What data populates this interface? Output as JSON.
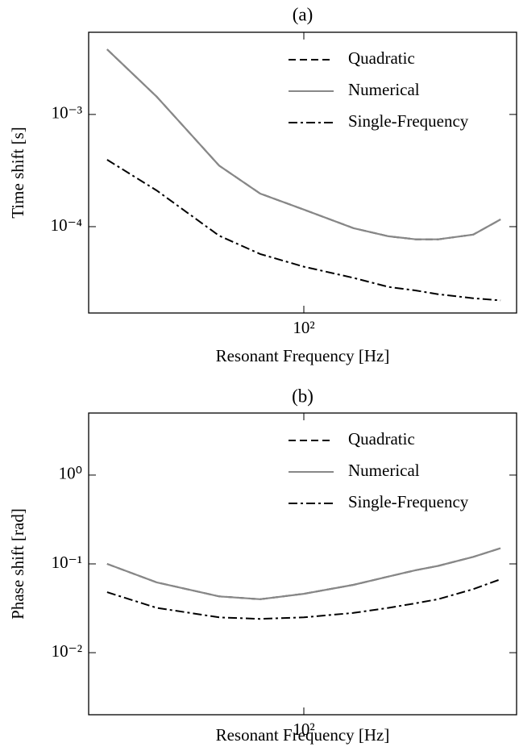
{
  "chart_data": [
    {
      "type": "line",
      "title": "(a)",
      "xlabel": "Resonant Frequency [Hz]",
      "ylabel": "Time shift [s]",
      "xscale": "log",
      "yscale": "log",
      "legend": "upper right",
      "x": [
        20,
        30,
        50,
        70,
        100,
        150,
        200,
        250,
        300,
        400,
        500
      ],
      "series": [
        {
          "name": "Quadratic",
          "color": "#000000",
          "linestyle": "dashed",
          "values": [
            0.0038,
            0.00144,
            0.00035,
            0.000197,
            0.000142,
            9.7e-05,
            8.2e-05,
            7.7e-05,
            7.7e-05,
            8.5e-05,
            0.000116
          ]
        },
        {
          "name": "Numerical",
          "color": "#888888",
          "linestyle": "solid",
          "values": [
            0.0038,
            0.00144,
            0.00035,
            0.000197,
            0.000142,
            9.7e-05,
            8.2e-05,
            7.7e-05,
            7.7e-05,
            8.5e-05,
            0.000116
          ]
        },
        {
          "name": "Single-Frequency",
          "color": "#000000",
          "linestyle": "dashdot",
          "values": [
            0.000395,
            0.00021,
            8.3e-05,
            5.7e-05,
            4.4e-05,
            3.5e-05,
            2.9e-05,
            2.7e-05,
            2.5e-05,
            2.3e-05,
            2.2e-05
          ]
        }
      ],
      "xlim": [
        17.2,
        570
      ],
      "ylim": [
        1.7e-05,
        0.0054
      ],
      "xticks": [
        {
          "value": 100,
          "label": "10²"
        }
      ],
      "yticks": [
        {
          "value": 0.0001,
          "label": "10⁻⁴"
        },
        {
          "value": 0.001,
          "label": "10⁻³"
        }
      ]
    },
    {
      "type": "line",
      "title": "(b)",
      "xlabel": "Resonant Frequency [Hz]",
      "ylabel": "Phase shift [rad]",
      "xscale": "log",
      "yscale": "log",
      "legend": "upper right",
      "x": [
        20,
        30,
        50,
        70,
        100,
        150,
        200,
        250,
        300,
        400,
        500
      ],
      "series": [
        {
          "name": "Quadratic",
          "color": "#000000",
          "linestyle": "dashed",
          "values": [
            0.1,
            0.062,
            0.043,
            0.04,
            0.046,
            0.058,
            0.072,
            0.085,
            0.095,
            0.12,
            0.15
          ]
        },
        {
          "name": "Numerical",
          "color": "#888888",
          "linestyle": "solid",
          "values": [
            0.1,
            0.062,
            0.043,
            0.04,
            0.046,
            0.058,
            0.072,
            0.085,
            0.095,
            0.12,
            0.15
          ]
        },
        {
          "name": "Single-Frequency",
          "color": "#000000",
          "linestyle": "dashdot",
          "values": [
            0.048,
            0.032,
            0.025,
            0.024,
            0.025,
            0.028,
            0.032,
            0.036,
            0.04,
            0.052,
            0.067
          ]
        }
      ],
      "xlim": [
        17.2,
        570
      ],
      "ylim": [
        0.002,
        5
      ],
      "xticks": [
        {
          "value": 100,
          "label": "10²"
        }
      ],
      "yticks": [
        {
          "value": 0.01,
          "label": "10⁻²"
        },
        {
          "value": 0.1,
          "label": "10⁻¹"
        },
        {
          "value": 1,
          "label": "10⁰"
        }
      ]
    }
  ]
}
